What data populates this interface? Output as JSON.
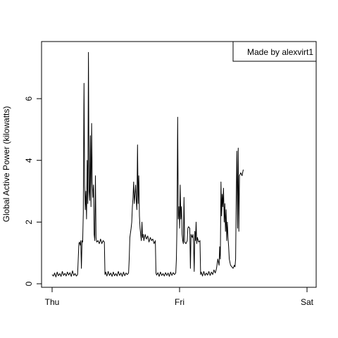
{
  "chart_data": {
    "type": "line",
    "title": "",
    "xlabel": "",
    "ylabel": "Global Active Power (kilowatts)",
    "xlim": [
      0,
      2
    ],
    "ylim": [
      0,
      7.6
    ],
    "x_ticks": [
      {
        "value": 0,
        "label": "Thu"
      },
      {
        "value": 1,
        "label": "Fri"
      },
      {
        "value": 2,
        "label": "Sat"
      }
    ],
    "y_ticks": [
      0,
      2,
      4,
      6
    ],
    "grid": false,
    "legend": {
      "placement": "top-right",
      "text": "Made by alexvirt1"
    },
    "series": [
      {
        "color": "#000000",
        "points": [
          [
            0.0,
            0.3
          ],
          [
            0.01,
            0.25
          ],
          [
            0.02,
            0.35
          ],
          [
            0.03,
            0.22
          ],
          [
            0.04,
            0.38
          ],
          [
            0.05,
            0.26
          ],
          [
            0.06,
            0.33
          ],
          [
            0.07,
            0.24
          ],
          [
            0.08,
            0.4
          ],
          [
            0.09,
            0.27
          ],
          [
            0.1,
            0.34
          ],
          [
            0.11,
            0.25
          ],
          [
            0.12,
            0.38
          ],
          [
            0.13,
            0.28
          ],
          [
            0.14,
            0.36
          ],
          [
            0.15,
            0.24
          ],
          [
            0.16,
            0.42
          ],
          [
            0.17,
            0.27
          ],
          [
            0.18,
            0.33
          ],
          [
            0.19,
            0.25
          ],
          [
            0.2,
            0.3
          ],
          [
            0.21,
            1.3
          ],
          [
            0.215,
            1.35
          ],
          [
            0.22,
            1.25
          ],
          [
            0.225,
            1.4
          ],
          [
            0.23,
            0.5
          ],
          [
            0.235,
            1.4
          ],
          [
            0.24,
            1.35
          ],
          [
            0.245,
            2.3
          ],
          [
            0.25,
            6.5
          ],
          [
            0.255,
            3.2
          ],
          [
            0.26,
            2.4
          ],
          [
            0.265,
            3.0
          ],
          [
            0.27,
            2.1
          ],
          [
            0.275,
            4.0
          ],
          [
            0.28,
            2.6
          ],
          [
            0.285,
            7.5
          ],
          [
            0.29,
            3.0
          ],
          [
            0.295,
            2.7
          ],
          [
            0.3,
            4.8
          ],
          [
            0.305,
            2.5
          ],
          [
            0.31,
            5.2
          ],
          [
            0.315,
            3.3
          ],
          [
            0.32,
            2.8
          ],
          [
            0.325,
            3.2
          ],
          [
            0.33,
            1.6
          ],
          [
            0.335,
            1.4
          ],
          [
            0.34,
            3.5
          ],
          [
            0.345,
            1.5
          ],
          [
            0.35,
            1.35
          ],
          [
            0.36,
            1.4
          ],
          [
            0.37,
            1.3
          ],
          [
            0.38,
            1.45
          ],
          [
            0.39,
            1.3
          ],
          [
            0.4,
            1.4
          ],
          [
            0.41,
            1.35
          ],
          [
            0.415,
            0.3
          ],
          [
            0.42,
            0.38
          ],
          [
            0.43,
            0.25
          ],
          [
            0.44,
            0.4
          ],
          [
            0.45,
            0.27
          ],
          [
            0.46,
            0.35
          ],
          [
            0.47,
            0.24
          ],
          [
            0.48,
            0.38
          ],
          [
            0.49,
            0.26
          ],
          [
            0.5,
            0.33
          ],
          [
            0.51,
            0.25
          ],
          [
            0.52,
            0.4
          ],
          [
            0.53,
            0.27
          ],
          [
            0.54,
            0.35
          ],
          [
            0.55,
            0.24
          ],
          [
            0.56,
            0.38
          ],
          [
            0.57,
            0.26
          ],
          [
            0.58,
            0.35
          ],
          [
            0.59,
            0.3
          ],
          [
            0.6,
            0.35
          ],
          [
            0.605,
            0.8
          ],
          [
            0.61,
            1.5
          ],
          [
            0.62,
            1.8
          ],
          [
            0.625,
            2.0
          ],
          [
            0.63,
            2.5
          ],
          [
            0.635,
            2.8
          ],
          [
            0.64,
            3.3
          ],
          [
            0.645,
            2.6
          ],
          [
            0.65,
            2.9
          ],
          [
            0.655,
            3.2
          ],
          [
            0.66,
            2.7
          ],
          [
            0.665,
            2.4
          ],
          [
            0.67,
            4.5
          ],
          [
            0.675,
            2.6
          ],
          [
            0.68,
            3.5
          ],
          [
            0.685,
            2.2
          ],
          [
            0.69,
            1.8
          ],
          [
            0.695,
            1.6
          ],
          [
            0.7,
            1.4
          ],
          [
            0.705,
            2.0
          ],
          [
            0.71,
            1.5
          ],
          [
            0.715,
            1.6
          ],
          [
            0.72,
            1.4
          ],
          [
            0.73,
            1.6
          ],
          [
            0.74,
            1.45
          ],
          [
            0.75,
            1.55
          ],
          [
            0.76,
            1.35
          ],
          [
            0.77,
            1.5
          ],
          [
            0.78,
            1.4
          ],
          [
            0.79,
            1.45
          ],
          [
            0.8,
            1.3
          ],
          [
            0.81,
            1.4
          ],
          [
            0.815,
            0.35
          ],
          [
            0.82,
            0.28
          ],
          [
            0.83,
            0.36
          ],
          [
            0.84,
            0.24
          ],
          [
            0.85,
            0.38
          ],
          [
            0.86,
            0.27
          ],
          [
            0.87,
            0.33
          ],
          [
            0.88,
            0.25
          ],
          [
            0.89,
            0.36
          ],
          [
            0.9,
            0.27
          ],
          [
            0.91,
            0.35
          ],
          [
            0.92,
            0.24
          ],
          [
            0.93,
            0.38
          ],
          [
            0.94,
            0.27
          ],
          [
            0.95,
            0.36
          ],
          [
            0.96,
            0.3
          ],
          [
            0.97,
            0.35
          ],
          [
            0.975,
            0.8
          ],
          [
            0.98,
            2.0
          ],
          [
            0.985,
            5.4
          ],
          [
            0.99,
            2.1
          ],
          [
            0.995,
            2.5
          ],
          [
            1.0,
            1.8
          ],
          [
            1.005,
            3.2
          ],
          [
            1.01,
            2.1
          ],
          [
            1.015,
            2.5
          ],
          [
            1.02,
            1.6
          ],
          [
            1.025,
            1.4
          ],
          [
            1.03,
            1.3
          ],
          [
            1.035,
            2.8
          ],
          [
            1.04,
            1.35
          ],
          [
            1.05,
            1.3
          ],
          [
            1.06,
            1.4
          ],
          [
            1.065,
            1.8
          ],
          [
            1.07,
            1.85
          ],
          [
            1.08,
            1.8
          ],
          [
            1.085,
            0.5
          ],
          [
            1.09,
            1.6
          ],
          [
            1.1,
            1.5
          ],
          [
            1.105,
            1.6
          ],
          [
            1.11,
            1.3
          ],
          [
            1.115,
            0.4
          ],
          [
            1.12,
            1.7
          ],
          [
            1.125,
            1.4
          ],
          [
            1.13,
            2.0
          ],
          [
            1.135,
            1.3
          ],
          [
            1.14,
            1.5
          ],
          [
            1.15,
            1.35
          ],
          [
            1.16,
            1.4
          ],
          [
            1.165,
            0.3
          ],
          [
            1.17,
            0.38
          ],
          [
            1.18,
            0.25
          ],
          [
            1.19,
            0.4
          ],
          [
            1.2,
            0.27
          ],
          [
            1.21,
            0.35
          ],
          [
            1.22,
            0.28
          ],
          [
            1.23,
            0.4
          ],
          [
            1.24,
            0.27
          ],
          [
            1.25,
            0.38
          ],
          [
            1.26,
            0.3
          ],
          [
            1.27,
            0.45
          ],
          [
            1.28,
            0.35
          ],
          [
            1.29,
            0.5
          ],
          [
            1.3,
            0.8
          ],
          [
            1.31,
            0.6
          ],
          [
            1.315,
            1.2
          ],
          [
            1.32,
            0.8
          ],
          [
            1.325,
            3.3
          ],
          [
            1.33,
            2.2
          ],
          [
            1.335,
            2.9
          ],
          [
            1.34,
            2.5
          ],
          [
            1.345,
            3.1
          ],
          [
            1.35,
            2.0
          ],
          [
            1.355,
            2.6
          ],
          [
            1.36,
            1.7
          ],
          [
            1.365,
            2.4
          ],
          [
            1.37,
            1.4
          ],
          [
            1.375,
            2.0
          ],
          [
            1.38,
            1.5
          ],
          [
            1.385,
            1.2
          ],
          [
            1.39,
            0.8
          ],
          [
            1.4,
            0.6
          ],
          [
            1.41,
            0.55
          ],
          [
            1.42,
            0.5
          ],
          [
            1.43,
            0.6
          ],
          [
            1.435,
            0.55
          ],
          [
            1.44,
            0.8
          ],
          [
            1.445,
            2.8
          ],
          [
            1.45,
            4.3
          ],
          [
            1.455,
            1.8
          ],
          [
            1.46,
            4.4
          ],
          [
            1.465,
            1.7
          ],
          [
            1.47,
            3.5
          ],
          [
            1.48,
            3.6
          ],
          [
            1.49,
            3.5
          ],
          [
            1.5,
            3.7
          ]
        ]
      }
    ]
  }
}
